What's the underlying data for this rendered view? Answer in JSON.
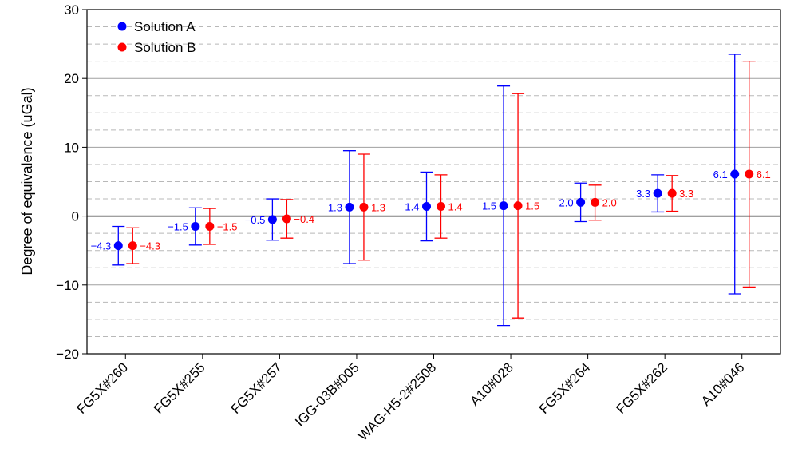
{
  "chart_data": {
    "type": "scatter",
    "subtype": "errorbar",
    "title": "",
    "xlabel": "",
    "ylabel": "Degree of  equivalence  (uGal)",
    "ylim": [
      -20,
      30
    ],
    "yticks": [
      -20,
      -10,
      0,
      10,
      20,
      30
    ],
    "ytick_labels": [
      "−20",
      "−10",
      "0",
      "10",
      "20",
      "30"
    ],
    "grid": {
      "major": true,
      "minor_dashed_step": 2.5
    },
    "legend_position": "top-left",
    "categories": [
      "FG5X#260",
      "FG5X#255",
      "FG5X#257",
      "IGG-03B#005",
      "WAG-H5-2#2508",
      "A10#028",
      "FG5X#264",
      "FG5X#262",
      "A10#046"
    ],
    "series": [
      {
        "name": "Solution A",
        "color": "#0000ff",
        "values": [
          -4.3,
          -1.5,
          -0.5,
          1.3,
          1.4,
          1.5,
          2.0,
          3.3,
          6.1
        ],
        "value_labels": [
          "−4.3",
          "−1.5",
          "−0.5",
          "1.3",
          "1.4",
          "1.5",
          "2.0",
          "3.3",
          "6.1"
        ],
        "err_low": [
          -7.1,
          -4.2,
          -3.5,
          -6.9,
          -3.6,
          -15.9,
          -0.8,
          0.6,
          -11.3
        ],
        "err_high": [
          -1.5,
          1.2,
          2.5,
          9.5,
          6.4,
          18.9,
          4.8,
          6.0,
          23.5
        ]
      },
      {
        "name": "Solution B",
        "color": "#ff0000",
        "values": [
          -4.3,
          -1.5,
          -0.4,
          1.3,
          1.4,
          1.5,
          2.0,
          3.3,
          6.1
        ],
        "value_labels": [
          "−4.3",
          "−1.5",
          "−0.4",
          "1.3",
          "1.4",
          "1.5",
          "2.0",
          "3.3",
          "6.1"
        ],
        "err_low": [
          -6.9,
          -4.1,
          -3.2,
          -6.4,
          -3.2,
          -14.8,
          -0.6,
          0.7,
          -10.3
        ],
        "err_high": [
          -1.7,
          1.1,
          2.4,
          9.0,
          6.0,
          17.8,
          4.5,
          5.9,
          22.5
        ]
      }
    ]
  }
}
